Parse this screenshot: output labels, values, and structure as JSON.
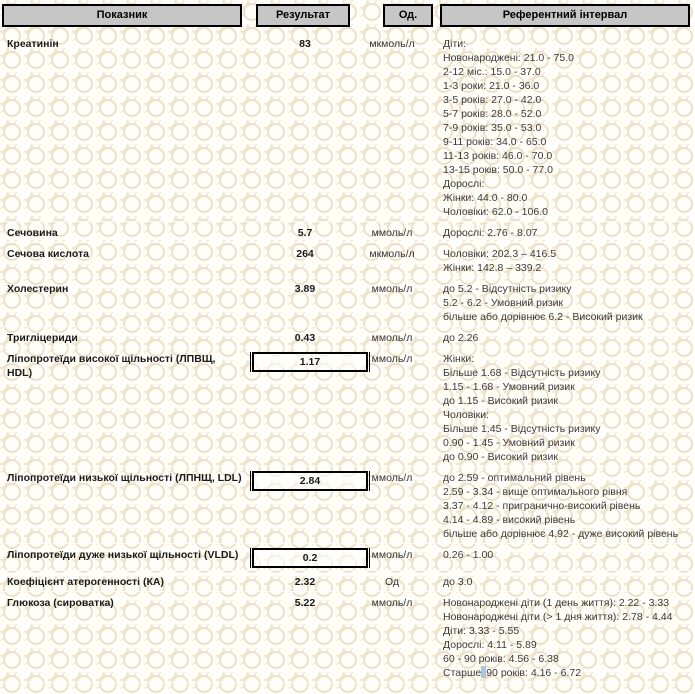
{
  "table": {
    "headers": [
      "Показник",
      "Результат",
      "Од.",
      "Референтний інтервал"
    ],
    "rows": [
      {
        "name": "Креатинін",
        "result": "83",
        "boxed": false,
        "unit": "мкмоль/л",
        "reference": [
          "Діти:",
          "Новонароджені: 21.0 - 75.0",
          "2-12 міс.: 15.0 - 37.0",
          "1-3 роки: 21.0 - 36.0",
          "3-5 років: 27.0 - 42.0",
          "5-7 років: 28.0 - 52.0",
          "7-9 років: 35.0 - 53.0",
          "9-11 років: 34.0 - 65.0",
          "11-13 років: 46.0 - 70.0",
          "13-15 років: 50.0 - 77.0",
          "Дорослі:",
          "Жінки: 44.0 - 80.0",
          "Чоловіки: 62.0 - 106.0"
        ]
      },
      {
        "name": "Сечовина",
        "result": "5.7",
        "boxed": false,
        "unit": "ммоль/л",
        "reference": [
          "Дорослі: 2.76 - 8.07"
        ]
      },
      {
        "name": "Сечова кислота",
        "result": "264",
        "boxed": false,
        "unit": "мкмоль/л",
        "reference": [
          "Чоловіки: 202.3 – 416.5",
          "Жінки: 142.8 – 339.2"
        ]
      },
      {
        "name": "Холестерин",
        "result": "3.89",
        "boxed": false,
        "unit": "ммоль/л",
        "reference": [
          "до 5.2 - Відсутність ризику",
          "5.2 - 6.2 - Умовний ризик",
          "більше або дорівнює 6.2 - Високий ризик"
        ]
      },
      {
        "name": "Тригліцериди",
        "result": "0.43",
        "boxed": false,
        "unit": "ммоль/л",
        "reference": [
          "до 2.26"
        ]
      },
      {
        "name": "Ліпопротеїди високої щільності (ЛПВЩ, HDL)",
        "result": "1.17",
        "boxed": true,
        "unit": "ммоль/л",
        "reference": [
          "Жінки:",
          "Більше 1.68 - Відсутність ризику",
          "1.15 - 1.68 - Умовний ризик",
          "до 1.15 - Високий ризик",
          "Чоловіки:",
          "Більше 1.45 - Відсутність ризику",
          "0.90 - 1.45 - Умовний ризик",
          "до 0.90 - Високий ризик"
        ]
      },
      {
        "name": "Ліпопротеїди низької щільності (ЛПНЩ, LDL)",
        "result": "2.84",
        "boxed": true,
        "unit": "ммоль/л",
        "reference": [
          "до 2.59 - оптимальний рівень",
          "2.59 - 3.34 - вище оптимального рівня",
          "3.37 - 4.12 - пригранично-високий рівень",
          "4.14 - 4.89 - високий рівень",
          "більше або дорівнює 4.92 - дуже високий рівень"
        ]
      },
      {
        "name": "Ліпопротеїди дуже низької щільності (VLDL)",
        "result": "0.2",
        "boxed": true,
        "unit": "ммоль/л",
        "reference": [
          "0.26 - 1.00"
        ]
      },
      {
        "name": "Коефіцієнт атерогенності (КА)",
        "result": "2.32",
        "boxed": false,
        "unit": "Од",
        "reference": [
          "до 3.0"
        ]
      },
      {
        "name": "Глюкоза (сироватка)",
        "result": "5.22",
        "boxed": false,
        "unit": "ммоль/л",
        "reference": [
          "Новонароджені діти (1 день життя): 2.22 - 3.33",
          "Новонароджені діти (> 1 дня життя): 2.78 - 4.44",
          "Діти: 3.33 - 5.55",
          "Дорослі: 4.11 - 5.89",
          "60 - 90 років: 4.56 - 6.38",
          {
            "before": "Старше",
            "after": "90 років: 4.16 - 6.72",
            "separator": "selected-space"
          }
        ]
      }
    ]
  },
  "colors": {
    "header_fill": "#c6c6c6",
    "header_border": "#000000",
    "pattern_tan": "#eedfc4",
    "pattern_pink": "#f6e3da",
    "selection_highlight": "#a9c7e2",
    "text": "#222222"
  }
}
